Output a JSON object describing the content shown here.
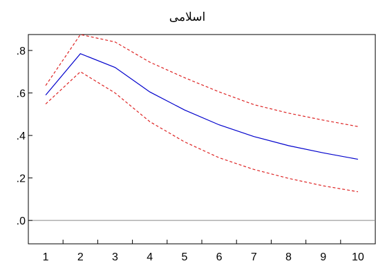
{
  "chart_data": {
    "type": "line",
    "title": "اسلامی",
    "xlabel": "",
    "ylabel": "",
    "x": [
      1,
      2,
      3,
      4,
      5,
      6,
      7,
      8,
      9,
      10
    ],
    "x_tick_labels": [
      "1",
      "2",
      "3",
      "4",
      "5",
      "6",
      "7",
      "8",
      "9",
      "10"
    ],
    "y_tick_values": [
      0.0,
      0.2,
      0.4,
      0.6,
      0.8
    ],
    "y_tick_labels": [
      ".0",
      ".2",
      ".4",
      ".6",
      ".8"
    ],
    "ylim": [
      -0.11,
      0.875
    ],
    "xlim": [
      0.5,
      10.5
    ],
    "grid": false,
    "zero_line": true,
    "series": [
      {
        "role": "estimate",
        "style": "solid",
        "color": "#0000cc",
        "values": [
          0.59,
          0.785,
          0.72,
          0.605,
          0.52,
          0.45,
          0.395,
          0.352,
          0.318,
          0.288
        ]
      },
      {
        "role": "upper band",
        "style": "dashed",
        "color": "#dd2222",
        "values": [
          0.635,
          0.875,
          0.84,
          0.745,
          0.672,
          0.605,
          0.545,
          0.505,
          0.472,
          0.442
        ]
      },
      {
        "role": "lower band",
        "style": "dashed",
        "color": "#dd2222",
        "values": [
          0.548,
          0.7,
          0.6,
          0.465,
          0.37,
          0.295,
          0.24,
          0.198,
          0.163,
          0.135
        ]
      }
    ]
  }
}
